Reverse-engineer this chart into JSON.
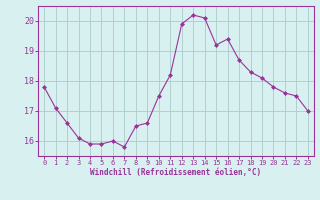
{
  "x": [
    0,
    1,
    2,
    3,
    4,
    5,
    6,
    7,
    8,
    9,
    10,
    11,
    12,
    13,
    14,
    15,
    16,
    17,
    18,
    19,
    20,
    21,
    22,
    23
  ],
  "y": [
    17.8,
    17.1,
    16.6,
    16.1,
    15.9,
    15.9,
    16.0,
    15.8,
    16.5,
    16.6,
    17.5,
    18.2,
    19.9,
    20.2,
    20.1,
    19.2,
    19.4,
    18.7,
    18.3,
    18.1,
    17.8,
    17.6,
    17.5,
    17.0
  ],
  "line_color": "#993399",
  "marker": "D",
  "marker_size": 2,
  "bg_color": "#d8f0f0",
  "grid_color": "#aacccc",
  "xlabel": "Windchill (Refroidissement éolien,°C)",
  "xlabel_color": "#993399",
  "tick_color": "#993399",
  "spine_color": "#993399",
  "ylim": [
    15.5,
    20.5
  ],
  "yticks": [
    16,
    17,
    18,
    19,
    20
  ],
  "xlim": [
    -0.5,
    23.5
  ],
  "xticks": [
    0,
    1,
    2,
    3,
    4,
    5,
    6,
    7,
    8,
    9,
    10,
    11,
    12,
    13,
    14,
    15,
    16,
    17,
    18,
    19,
    20,
    21,
    22,
    23
  ]
}
